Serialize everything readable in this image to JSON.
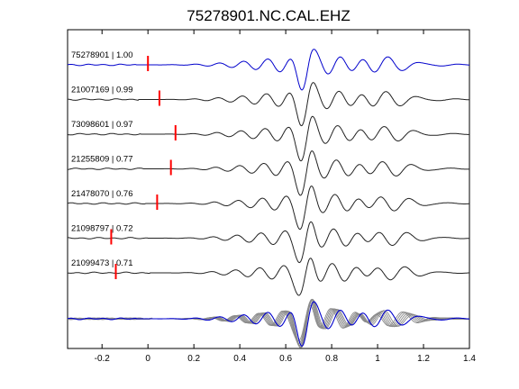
{
  "chart_data": {
    "type": "line",
    "title": "75278901.NC.CAL.EHZ",
    "xlabel": "",
    "ylabel": "",
    "xlim": [
      -0.35,
      1.4
    ],
    "xticks": [
      -0.2,
      0,
      0.2,
      0.4,
      0.6,
      0.8,
      1,
      1.2,
      1.4
    ],
    "xtick_labels": [
      "-0.2",
      "0",
      "0.2",
      "0.4",
      "0.6",
      "0.8",
      "1",
      "1.2",
      "1.4"
    ],
    "grid": false,
    "legend": "none",
    "colors": {
      "reference": "#0000cc",
      "trace": "#222222",
      "stack": "#8a8a8a",
      "pick": "#ff0000",
      "axes": "#000000"
    },
    "series": [
      {
        "label": "75278901 | 1.00",
        "id": "75278901",
        "cc": 1.0,
        "pick_time": 0.0,
        "highlight": true
      },
      {
        "label": "21007169 | 0.99",
        "id": "21007169",
        "cc": 0.99,
        "pick_time": 0.05,
        "highlight": false
      },
      {
        "label": "73098601 | 0.97",
        "id": "73098601",
        "cc": 0.97,
        "pick_time": 0.12,
        "highlight": false
      },
      {
        "label": "21255809 | 0.77",
        "id": "21255809",
        "cc": 0.77,
        "pick_time": 0.1,
        "highlight": false
      },
      {
        "label": "21478070 | 0.76",
        "id": "21478070",
        "cc": 0.76,
        "pick_time": 0.04,
        "highlight": false
      },
      {
        "label": "21098797 | 0.72",
        "id": "21098797",
        "cc": 0.72,
        "pick_time": -0.16,
        "highlight": false
      },
      {
        "label": "21099473 | 0.71",
        "id": "21099473",
        "cc": 0.71,
        "pick_time": -0.14,
        "highlight": false
      }
    ],
    "stack_note": ""
  }
}
